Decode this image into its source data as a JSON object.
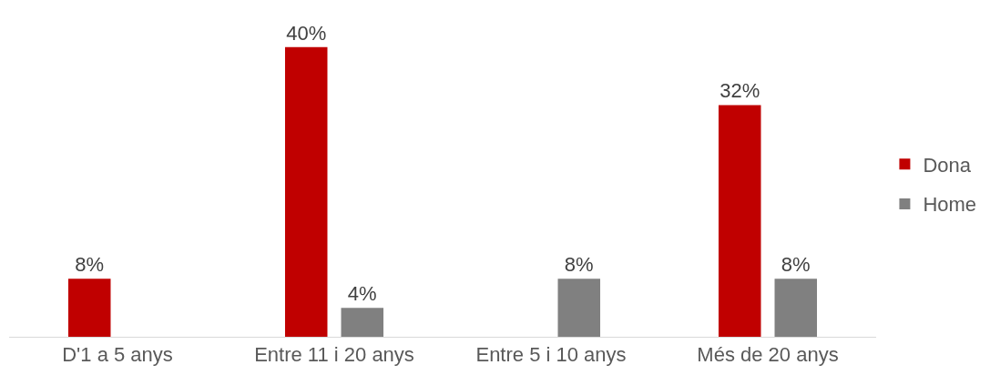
{
  "chart_data": {
    "type": "bar",
    "categories": [
      "D'1 a 5 anys",
      "Entre 11 i 20 anys",
      "Entre 5 i 10 anys",
      "Més de 20 anys"
    ],
    "series": [
      {
        "name": "Dona",
        "color": "#c00000",
        "values": [
          8,
          40,
          null,
          32
        ],
        "value_labels": [
          "8%",
          "40%",
          null,
          "32%"
        ]
      },
      {
        "name": "Home",
        "color": "#808080",
        "values": [
          null,
          4,
          8,
          8
        ],
        "value_labels": [
          null,
          "4%",
          "8%",
          "8%"
        ]
      }
    ],
    "legend": "right",
    "tick_labels": "x"
  }
}
